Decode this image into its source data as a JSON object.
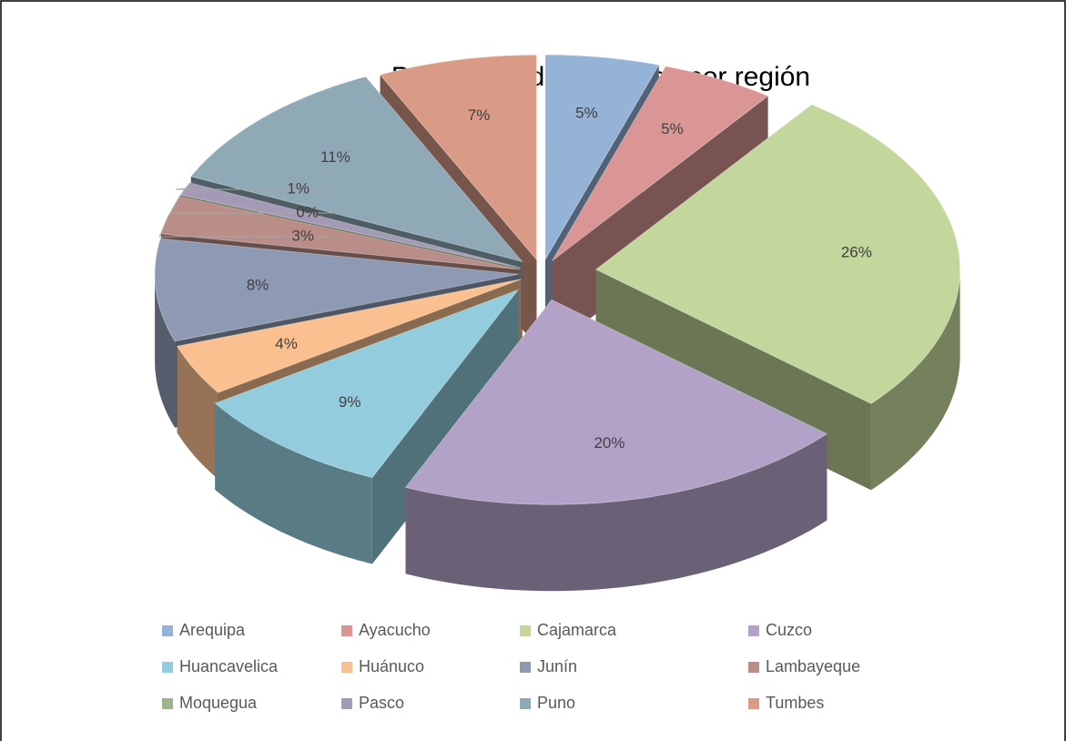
{
  "chart_data": {
    "type": "pie",
    "title": "Porcentaje de muestras por región",
    "categories": [
      "Arequipa",
      "Ayacucho",
      "Cajamarca",
      "Cuzco",
      "Huancavelica",
      "Huánuco",
      "Junín",
      "Lambayeque",
      "Moquegua",
      "Pasco",
      "Puno",
      "Tumbes"
    ],
    "values": [
      5,
      5,
      26,
      20,
      9,
      4,
      8,
      3,
      0,
      1,
      11,
      7
    ],
    "value_labels": [
      "5%",
      "5%",
      "26%",
      "20%",
      "9%",
      "4%",
      "8%",
      "3%",
      "0%",
      "1%",
      "11%",
      "7%"
    ],
    "colors": [
      "#95b3d7",
      "#d99694",
      "#c3d69b",
      "#b3a2c7",
      "#93cddd",
      "#fac090",
      "#8e9ab4",
      "#b98e88",
      "#9fb38a",
      "#a39bb5",
      "#8fa9b6",
      "#d99a86"
    ],
    "legend": "bottom"
  }
}
